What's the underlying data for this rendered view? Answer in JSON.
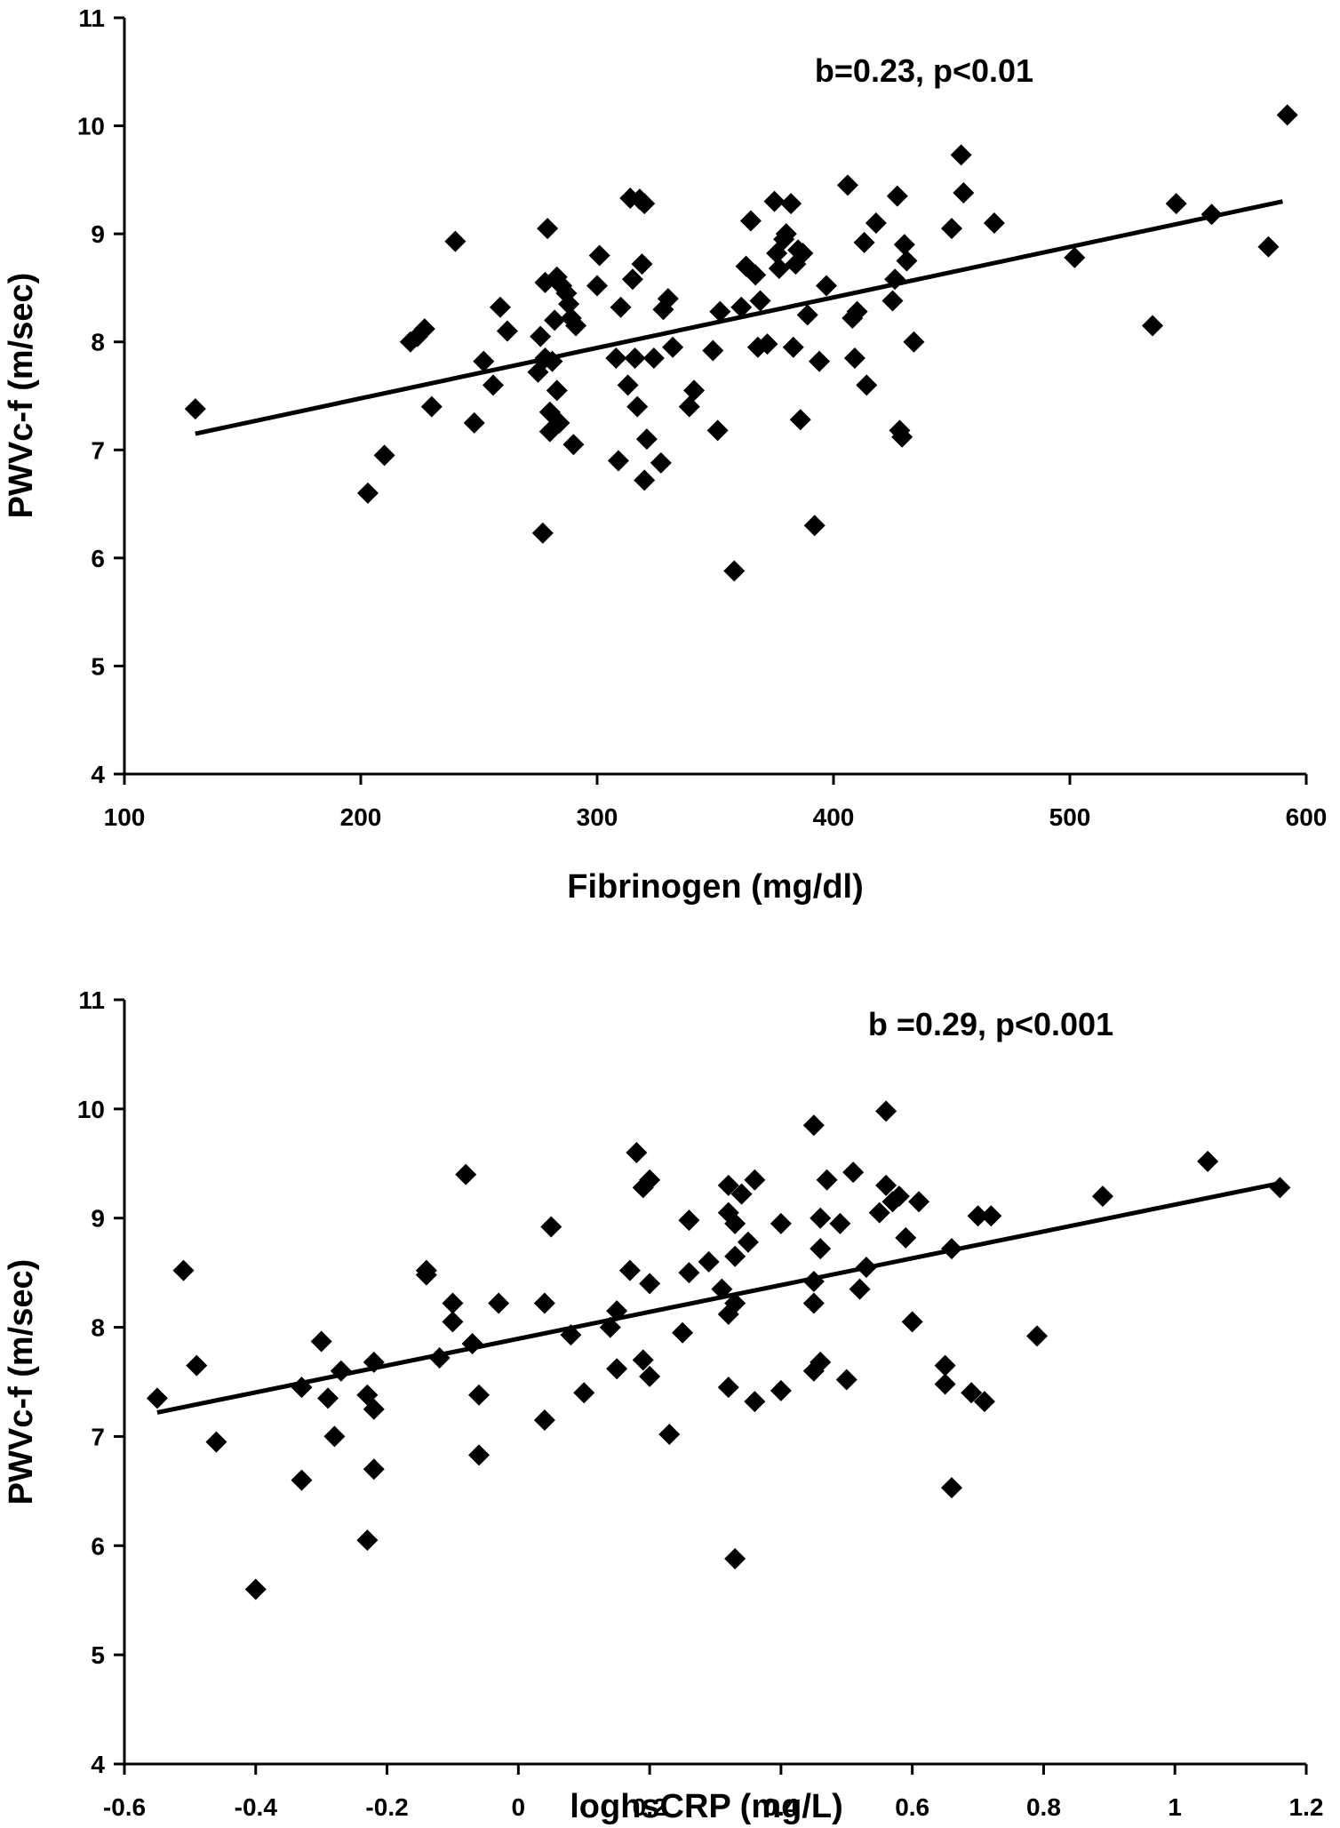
{
  "chart_data": [
    {
      "type": "scatter",
      "title": "",
      "annotation": "b=0.23, p<0.01",
      "xlabel": "Fibrinogen (mg/dl)",
      "ylabel": "PWVc-f (m/sec)",
      "xlim": [
        100,
        600
      ],
      "ylim": [
        4,
        11
      ],
      "xticks": [
        100,
        200,
        300,
        400,
        500,
        600
      ],
      "yticks": [
        4,
        5,
        6,
        7,
        8,
        9,
        10,
        11
      ],
      "grid": false,
      "trendline": {
        "x": [
          130,
          590
        ],
        "y": [
          7.15,
          9.3
        ]
      },
      "points": [
        [
          130,
          7.38
        ],
        [
          203,
          6.6
        ],
        [
          210,
          6.95
        ],
        [
          221,
          8.0
        ],
        [
          224,
          8.05
        ],
        [
          227,
          8.12
        ],
        [
          230,
          7.4
        ],
        [
          240,
          8.93
        ],
        [
          248,
          7.25
        ],
        [
          252,
          7.82
        ],
        [
          256,
          7.6
        ],
        [
          259,
          8.32
        ],
        [
          262,
          8.1
        ],
        [
          275,
          7.72
        ],
        [
          276,
          8.05
        ],
        [
          277,
          6.23
        ],
        [
          278,
          7.85
        ],
        [
          278,
          8.55
        ],
        [
          279,
          9.05
        ],
        [
          280,
          7.17
        ],
        [
          280,
          7.35
        ],
        [
          281,
          7.82
        ],
        [
          282,
          8.2
        ],
        [
          283,
          7.55
        ],
        [
          283,
          8.6
        ],
        [
          284,
          7.25
        ],
        [
          285,
          8.52
        ],
        [
          287,
          8.45
        ],
        [
          288,
          8.35
        ],
        [
          289,
          8.22
        ],
        [
          290,
          7.05
        ],
        [
          291,
          8.15
        ],
        [
          300,
          8.52
        ],
        [
          301,
          8.8
        ],
        [
          308,
          7.85
        ],
        [
          309,
          6.9
        ],
        [
          310,
          8.32
        ],
        [
          313,
          7.6
        ],
        [
          314,
          9.33
        ],
        [
          315,
          8.58
        ],
        [
          316,
          7.85
        ],
        [
          317,
          7.4
        ],
        [
          318,
          9.32
        ],
        [
          319,
          8.72
        ],
        [
          320,
          9.28
        ],
        [
          320,
          6.72
        ],
        [
          321,
          7.1
        ],
        [
          324,
          7.85
        ],
        [
          327,
          6.88
        ],
        [
          328,
          8.3
        ],
        [
          330,
          8.4
        ],
        [
          332,
          7.95
        ],
        [
          339,
          7.4
        ],
        [
          341,
          7.55
        ],
        [
          349,
          7.92
        ],
        [
          351,
          7.18
        ],
        [
          352,
          8.28
        ],
        [
          358,
          5.88
        ],
        [
          361,
          8.32
        ],
        [
          363,
          8.7
        ],
        [
          365,
          9.12
        ],
        [
          367,
          8.62
        ],
        [
          368,
          7.95
        ],
        [
          369,
          8.38
        ],
        [
          372,
          7.98
        ],
        [
          375,
          9.3
        ],
        [
          376,
          8.82
        ],
        [
          377,
          8.68
        ],
        [
          379,
          8.95
        ],
        [
          380,
          9.0
        ],
        [
          382,
          9.28
        ],
        [
          383,
          7.95
        ],
        [
          384,
          8.72
        ],
        [
          385,
          8.85
        ],
        [
          386,
          7.28
        ],
        [
          387,
          8.82
        ],
        [
          389,
          8.25
        ],
        [
          392,
          6.3
        ],
        [
          394,
          7.82
        ],
        [
          397,
          8.52
        ],
        [
          406,
          9.45
        ],
        [
          408,
          8.22
        ],
        [
          409,
          7.85
        ],
        [
          410,
          8.28
        ],
        [
          413,
          8.92
        ],
        [
          414,
          7.6
        ],
        [
          418,
          9.1
        ],
        [
          425,
          8.38
        ],
        [
          426,
          8.58
        ],
        [
          427,
          9.35
        ],
        [
          428,
          7.18
        ],
        [
          429,
          7.12
        ],
        [
          430,
          8.9
        ],
        [
          431,
          8.75
        ],
        [
          434,
          8.0
        ],
        [
          450,
          9.05
        ],
        [
          454,
          9.73
        ],
        [
          455,
          9.38
        ],
        [
          468,
          9.1
        ],
        [
          502,
          8.78
        ],
        [
          535,
          8.15
        ],
        [
          545,
          9.28
        ],
        [
          560,
          9.18
        ],
        [
          584,
          8.88
        ],
        [
          592,
          10.1
        ]
      ]
    },
    {
      "type": "scatter",
      "title": "",
      "annotation": "b =0.29, p<0.001",
      "xlabel": "loghsCRP (mg/L)",
      "ylabel": "PWVc-f (m/sec)",
      "xlim": [
        -0.6,
        1.2
      ],
      "ylim": [
        4,
        11
      ],
      "xticks": [
        -0.6,
        -0.4,
        -0.2,
        0,
        0.2,
        0.4,
        0.6,
        0.8,
        1,
        1.2
      ],
      "yticks": [
        4,
        5,
        6,
        7,
        8,
        9,
        10,
        11
      ],
      "grid": false,
      "trendline": {
        "x": [
          -0.55,
          1.16
        ],
        "y": [
          7.22,
          9.32
        ]
      },
      "points": [
        [
          -0.55,
          7.35
        ],
        [
          -0.51,
          8.52
        ],
        [
          -0.49,
          7.65
        ],
        [
          -0.46,
          6.95
        ],
        [
          -0.4,
          5.6
        ],
        [
          -0.33,
          6.6
        ],
        [
          -0.33,
          7.45
        ],
        [
          -0.3,
          7.87
        ],
        [
          -0.29,
          7.35
        ],
        [
          -0.28,
          7.0
        ],
        [
          -0.27,
          7.6
        ],
        [
          -0.23,
          6.05
        ],
        [
          -0.23,
          7.38
        ],
        [
          -0.22,
          7.25
        ],
        [
          -0.22,
          6.7
        ],
        [
          -0.22,
          7.68
        ],
        [
          -0.14,
          8.52
        ],
        [
          -0.14,
          8.48
        ],
        [
          -0.12,
          7.72
        ],
        [
          -0.1,
          8.22
        ],
        [
          -0.1,
          8.05
        ],
        [
          -0.08,
          9.4
        ],
        [
          -0.07,
          7.85
        ],
        [
          -0.06,
          7.38
        ],
        [
          -0.06,
          6.83
        ],
        [
          -0.03,
          8.22
        ],
        [
          0.04,
          8.22
        ],
        [
          0.04,
          7.15
        ],
        [
          0.05,
          8.92
        ],
        [
          0.08,
          7.93
        ],
        [
          0.1,
          7.4
        ],
        [
          0.14,
          8.0
        ],
        [
          0.15,
          7.62
        ],
        [
          0.15,
          8.15
        ],
        [
          0.17,
          8.52
        ],
        [
          0.18,
          9.6
        ],
        [
          0.19,
          7.7
        ],
        [
          0.19,
          9.28
        ],
        [
          0.2,
          8.4
        ],
        [
          0.2,
          7.55
        ],
        [
          0.2,
          9.35
        ],
        [
          0.23,
          7.02
        ],
        [
          0.25,
          7.95
        ],
        [
          0.26,
          8.5
        ],
        [
          0.26,
          8.98
        ],
        [
          0.29,
          8.6
        ],
        [
          0.31,
          8.35
        ],
        [
          0.32,
          9.3
        ],
        [
          0.32,
          7.45
        ],
        [
          0.32,
          8.12
        ],
        [
          0.32,
          9.05
        ],
        [
          0.33,
          8.95
        ],
        [
          0.33,
          5.88
        ],
        [
          0.33,
          8.65
        ],
        [
          0.33,
          8.22
        ],
        [
          0.34,
          9.22
        ],
        [
          0.35,
          8.78
        ],
        [
          0.36,
          7.32
        ],
        [
          0.36,
          9.35
        ],
        [
          0.4,
          7.42
        ],
        [
          0.4,
          8.95
        ],
        [
          0.45,
          9.85
        ],
        [
          0.45,
          7.6
        ],
        [
          0.45,
          8.22
        ],
        [
          0.45,
          8.42
        ],
        [
          0.46,
          7.68
        ],
        [
          0.46,
          8.72
        ],
        [
          0.46,
          9.0
        ],
        [
          0.47,
          9.35
        ],
        [
          0.49,
          8.95
        ],
        [
          0.5,
          7.52
        ],
        [
          0.51,
          9.42
        ],
        [
          0.52,
          8.35
        ],
        [
          0.53,
          8.55
        ],
        [
          0.55,
          9.05
        ],
        [
          0.56,
          9.98
        ],
        [
          0.56,
          9.3
        ],
        [
          0.57,
          9.15
        ],
        [
          0.58,
          9.2
        ],
        [
          0.59,
          8.82
        ],
        [
          0.6,
          8.05
        ],
        [
          0.61,
          9.15
        ],
        [
          0.65,
          7.65
        ],
        [
          0.65,
          7.48
        ],
        [
          0.66,
          6.53
        ],
        [
          0.66,
          8.72
        ],
        [
          0.69,
          7.4
        ],
        [
          0.7,
          9.02
        ],
        [
          0.71,
          7.32
        ],
        [
          0.72,
          9.02
        ],
        [
          0.79,
          7.92
        ],
        [
          0.89,
          9.2
        ],
        [
          1.05,
          9.52
        ],
        [
          1.16,
          9.28
        ]
      ]
    }
  ]
}
